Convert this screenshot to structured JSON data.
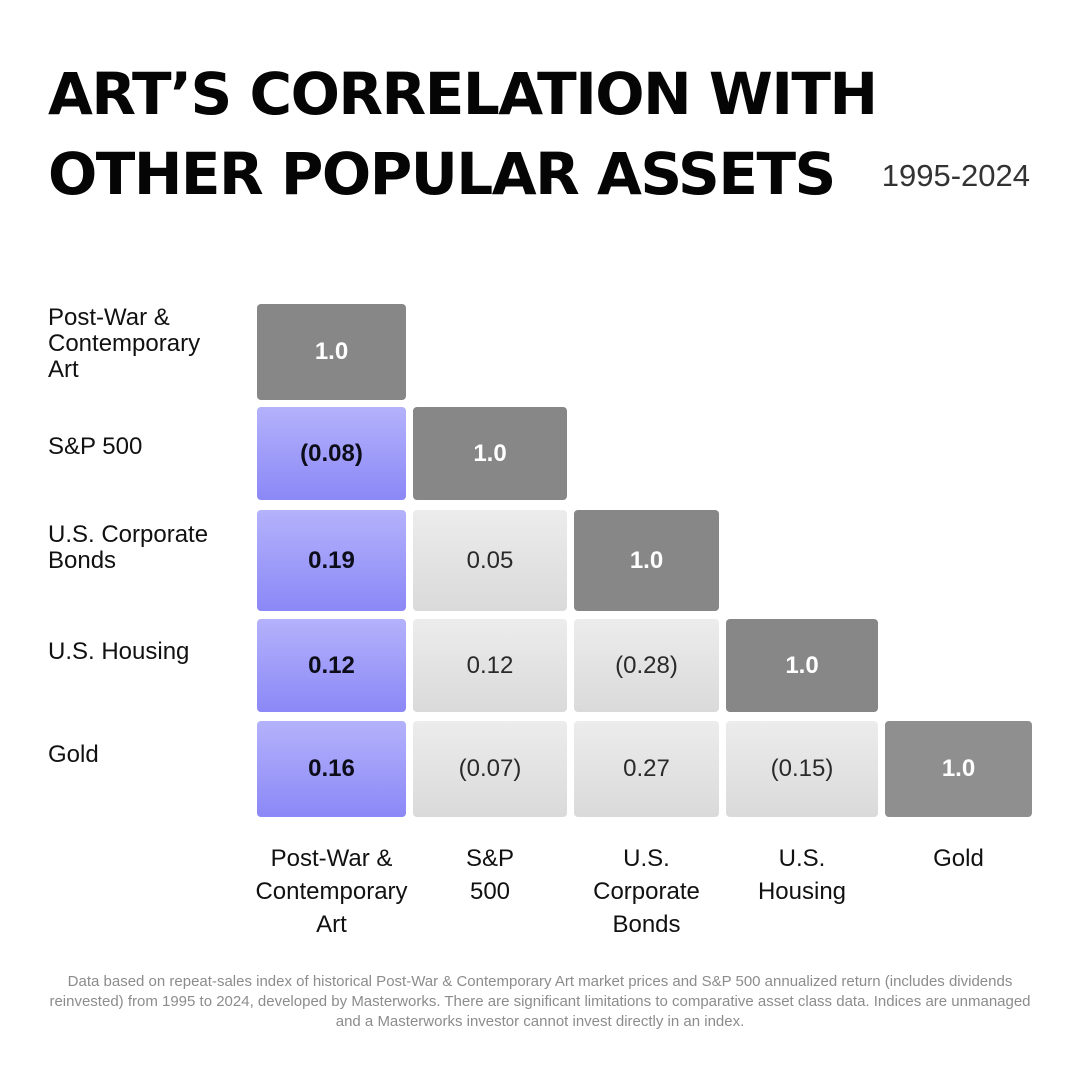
{
  "chart_data": {
    "type": "heatmap",
    "title": [
      "ART’S CORRELATION WITH",
      "OTHER POPULAR ASSETS"
    ],
    "subtitle": "1995-2024",
    "row_labels": [
      "Post-War &\nContemporary\nArt",
      "S&P 500",
      "U.S. Corporate\nBonds",
      "U.S. Housing",
      "Gold"
    ],
    "col_labels": [
      "Post-War &\nContemporary\nArt",
      "S&P\n500",
      "U.S.\nCorporate\nBonds",
      "U.S.\nHousing",
      "Gold"
    ],
    "values": [
      [
        1.0
      ],
      [
        -0.08,
        1.0
      ],
      [
        0.19,
        0.05,
        1.0
      ],
      [
        0.12,
        0.12,
        -0.28,
        1.0
      ],
      [
        0.16,
        -0.07,
        0.27,
        -0.15,
        1.0
      ]
    ],
    "value_labels": [
      [
        "1.0"
      ],
      [
        "(0.08)",
        "1.0"
      ],
      [
        "0.19",
        "0.05",
        "1.0"
      ],
      [
        "0.12",
        "0.12",
        "(0.28)",
        "1.0"
      ],
      [
        "0.16",
        "(0.07)",
        "0.27",
        "(0.15)",
        "1.0"
      ]
    ],
    "colors": {
      "diagonal": "#878787",
      "art_column": "#9a98f8",
      "other": "#e2e2e2"
    }
  },
  "footnote": "Data based on repeat-sales index of historical Post-War & Contemporary Art market prices and S&P 500 annualized return (includes dividends reinvested) from 1995 to 2024, developed by Masterworks. There are significant limitations to comparative asset class data. Indices are unmanaged and a Masterworks investor cannot invest directly in an index."
}
